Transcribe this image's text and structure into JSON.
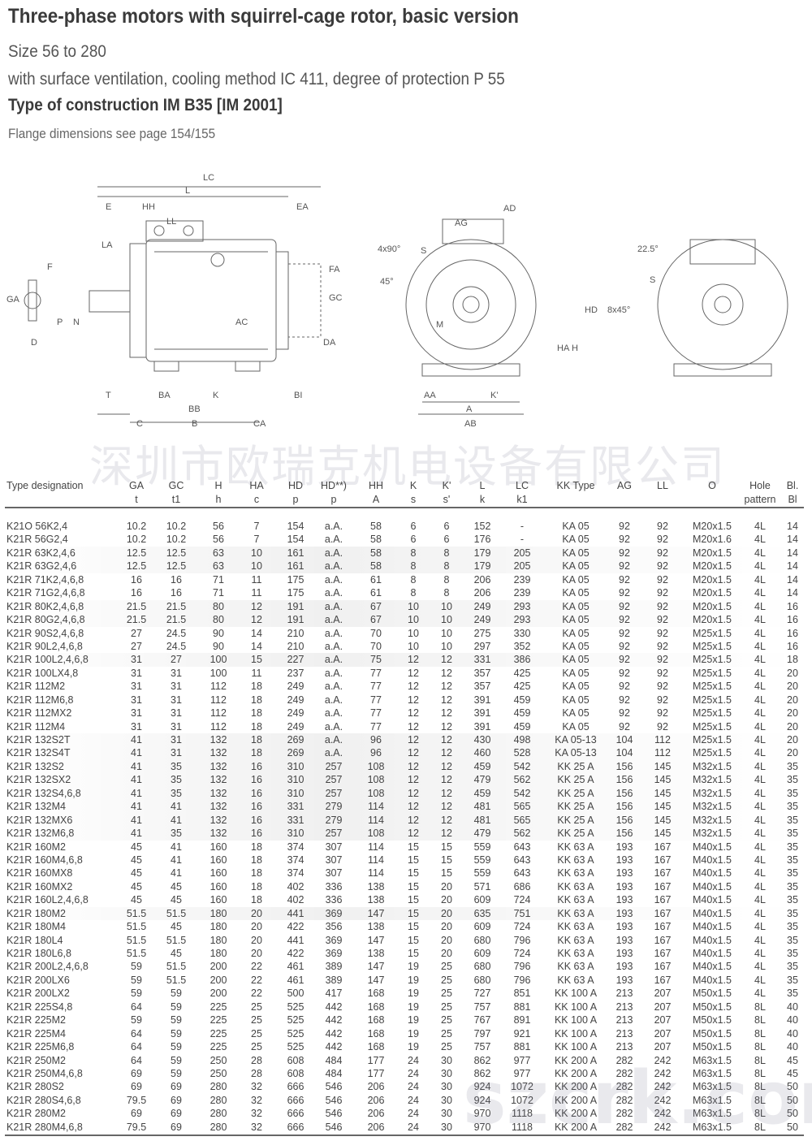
{
  "header": {
    "title": "Three-phase motors with squirrel-cage rotor, basic version",
    "size": "Size 56 to 280",
    "ventilation": "with surface ventilation, cooling method IC 411, degree of protection P 55",
    "construction": "Type of construction IM B35 [IM 2001]",
    "flange_note": "Flange dimensions see page 154/155"
  },
  "drawing": {
    "side_labels": [
      "LC",
      "L",
      "E",
      "HH",
      "EA",
      "LL",
      "LA",
      "F",
      "GA",
      "D",
      "P",
      "N",
      "AC",
      "FA",
      "GC",
      "DA",
      "T",
      "BA",
      "BB",
      "K",
      "C",
      "B",
      "CA",
      "BI"
    ],
    "front_labels": [
      "AD",
      "AG",
      "4x90°",
      "45°",
      "S",
      "M",
      "HD",
      "HA",
      "H",
      "AA",
      "K'",
      "A",
      "AB"
    ],
    "rear_labels": [
      "22.5°",
      "8x45°",
      "S"
    ]
  },
  "watermark": {
    "company": "深圳市欧瑞克机电设备有限公司",
    "site": "szcrk.com"
  },
  "table": {
    "columns": [
      {
        "top": "Type designation",
        "bottom": ""
      },
      {
        "top": "GA",
        "bottom": "t"
      },
      {
        "top": "GC",
        "bottom": "t1"
      },
      {
        "top": "H",
        "bottom": "h"
      },
      {
        "top": "HA",
        "bottom": "c"
      },
      {
        "top": "HD",
        "bottom": "p"
      },
      {
        "top": "HD**)",
        "bottom": "p"
      },
      {
        "top": "HH",
        "bottom": "A"
      },
      {
        "top": "K",
        "bottom": "s"
      },
      {
        "top": "K'",
        "bottom": "s'"
      },
      {
        "top": "L",
        "bottom": "k"
      },
      {
        "top": "LC",
        "bottom": "k1"
      },
      {
        "top": "KK Type",
        "bottom": ""
      },
      {
        "top": "AG",
        "bottom": ""
      },
      {
        "top": "LL",
        "bottom": ""
      },
      {
        "top": "O",
        "bottom": ""
      },
      {
        "top": "Hole",
        "bottom": "pattern"
      },
      {
        "top": "Bl.",
        "bottom": "Bl"
      }
    ],
    "rows": [
      [
        "K21O 56K2,4",
        "10.2",
        "10.2",
        "56",
        "7",
        "154",
        "a.A.",
        "58",
        "6",
        "6",
        "152",
        "-",
        "KA 05",
        "92",
        "92",
        "M20x1.5",
        "4L",
        "14"
      ],
      [
        "K21R 56G2,4",
        "10.2",
        "10.2",
        "56",
        "7",
        "154",
        "a.A.",
        "58",
        "6",
        "6",
        "176",
        "-",
        "KA 05",
        "92",
        "92",
        "M20x1.6",
        "4L",
        "14"
      ],
      [
        "K21R 63K2,4,6",
        "12.5",
        "12.5",
        "63",
        "10",
        "161",
        "a.A.",
        "58",
        "8",
        "8",
        "179",
        "205",
        "KA 05",
        "92",
        "92",
        "M20x1.5",
        "4L",
        "14"
      ],
      [
        "K21R 63G2,4,6",
        "12.5",
        "12.5",
        "63",
        "10",
        "161",
        "a.A.",
        "58",
        "8",
        "8",
        "179",
        "205",
        "KA 05",
        "92",
        "92",
        "M20x1.5",
        "4L",
        "14"
      ],
      [
        "K21R 71K2,4,6,8",
        "16",
        "16",
        "71",
        "11",
        "175",
        "a.A.",
        "61",
        "8",
        "8",
        "206",
        "239",
        "KA 05",
        "92",
        "92",
        "M20x1.5",
        "4L",
        "14"
      ],
      [
        "K21R 71G2,4,6,8",
        "16",
        "16",
        "71",
        "11",
        "175",
        "a.A.",
        "61",
        "8",
        "8",
        "206",
        "239",
        "KA 05",
        "92",
        "92",
        "M20x1.5",
        "4L",
        "14"
      ],
      [
        "K21R 80K2,4,6,8",
        "21.5",
        "21.5",
        "80",
        "12",
        "191",
        "a.A.",
        "67",
        "10",
        "10",
        "249",
        "293",
        "KA 05",
        "92",
        "92",
        "M20x1.5",
        "4L",
        "16"
      ],
      [
        "K21R 80G2,4,6,8",
        "21.5",
        "21.5",
        "80",
        "12",
        "191",
        "a.A.",
        "67",
        "10",
        "10",
        "249",
        "293",
        "KA 05",
        "92",
        "92",
        "M20x1.5",
        "4L",
        "16"
      ],
      [
        "K21R 90S2,4,6,8",
        "27",
        "24.5",
        "90",
        "14",
        "210",
        "a.A.",
        "70",
        "10",
        "10",
        "275",
        "330",
        "KA 05",
        "92",
        "92",
        "M25x1.5",
        "4L",
        "16"
      ],
      [
        "K21R 90L2,4,6,8",
        "27",
        "24.5",
        "90",
        "14",
        "210",
        "a.A.",
        "70",
        "10",
        "10",
        "297",
        "352",
        "KA 05",
        "92",
        "92",
        "M25x1.5",
        "4L",
        "16"
      ],
      [
        "K21R 100L2,4,6,8",
        "31",
        "27",
        "100",
        "15",
        "227",
        "a.A.",
        "75",
        "12",
        "12",
        "331",
        "386",
        "KA 05",
        "92",
        "92",
        "M25x1.5",
        "4L",
        "18"
      ],
      [
        "K21R 100LX4,8",
        "31",
        "31",
        "100",
        "11",
        "237",
        "a.A.",
        "77",
        "12",
        "12",
        "357",
        "425",
        "KA 05",
        "92",
        "92",
        "M25x1.5",
        "4L",
        "20"
      ],
      [
        "K21R 112M2",
        "31",
        "31",
        "112",
        "18",
        "249",
        "a.A.",
        "77",
        "12",
        "12",
        "357",
        "425",
        "KA 05",
        "92",
        "92",
        "M25x1.5",
        "4L",
        "20"
      ],
      [
        "K21R 112M6,8",
        "31",
        "31",
        "112",
        "18",
        "249",
        "a.A.",
        "77",
        "12",
        "12",
        "391",
        "459",
        "KA 05",
        "92",
        "92",
        "M25x1.5",
        "4L",
        "20"
      ],
      [
        "K21R 112MX2",
        "31",
        "31",
        "112",
        "18",
        "249",
        "a.A.",
        "77",
        "12",
        "12",
        "391",
        "459",
        "KA 05",
        "92",
        "92",
        "M25x1.5",
        "4L",
        "20"
      ],
      [
        "K21R 112M4",
        "31",
        "31",
        "112",
        "18",
        "249",
        "a.A.",
        "77",
        "12",
        "12",
        "391",
        "459",
        "KA 05",
        "92",
        "92",
        "M25x1.5",
        "4L",
        "20"
      ],
      [
        "K21R 132S2T",
        "41",
        "31",
        "132",
        "18",
        "269",
        "a.A.",
        "96",
        "12",
        "12",
        "430",
        "498",
        "KA 05-13",
        "104",
        "112",
        "M25x1.5",
        "4L",
        "20"
      ],
      [
        "K21R 132S4T",
        "41",
        "31",
        "132",
        "18",
        "269",
        "a.A.",
        "96",
        "12",
        "12",
        "460",
        "528",
        "KA 05-13",
        "104",
        "112",
        "M25x1.5",
        "4L",
        "20"
      ],
      [
        "K21R 132S2",
        "41",
        "35",
        "132",
        "16",
        "310",
        "257",
        "108",
        "12",
        "12",
        "459",
        "542",
        "KK 25 A",
        "156",
        "145",
        "M32x1.5",
        "4L",
        "35"
      ],
      [
        "K21R 132SX2",
        "41",
        "35",
        "132",
        "16",
        "310",
        "257",
        "108",
        "12",
        "12",
        "479",
        "562",
        "KK 25 A",
        "156",
        "145",
        "M32x1.5",
        "4L",
        "35"
      ],
      [
        "K21R 132S4,6,8",
        "41",
        "35",
        "132",
        "16",
        "310",
        "257",
        "108",
        "12",
        "12",
        "459",
        "542",
        "KK 25 A",
        "156",
        "145",
        "M32x1.5",
        "4L",
        "35"
      ],
      [
        "K21R 132M4",
        "41",
        "41",
        "132",
        "16",
        "331",
        "279",
        "114",
        "12",
        "12",
        "481",
        "565",
        "KK 25 A",
        "156",
        "145",
        "M32x1.5",
        "4L",
        "35"
      ],
      [
        "K21R 132MX6",
        "41",
        "41",
        "132",
        "16",
        "331",
        "279",
        "114",
        "12",
        "12",
        "481",
        "565",
        "KK 25 A",
        "156",
        "145",
        "M32x1.5",
        "4L",
        "35"
      ],
      [
        "K21R 132M6,8",
        "41",
        "35",
        "132",
        "16",
        "310",
        "257",
        "108",
        "12",
        "12",
        "479",
        "562",
        "KK 25 A",
        "156",
        "145",
        "M32x1.5",
        "4L",
        "35"
      ],
      [
        "K21R 160M2",
        "45",
        "41",
        "160",
        "18",
        "374",
        "307",
        "114",
        "15",
        "15",
        "559",
        "643",
        "KK 63 A",
        "193",
        "167",
        "M40x1.5",
        "4L",
        "35"
      ],
      [
        "K21R 160M4,6,8",
        "45",
        "41",
        "160",
        "18",
        "374",
        "307",
        "114",
        "15",
        "15",
        "559",
        "643",
        "KK 63 A",
        "193",
        "167",
        "M40x1.5",
        "4L",
        "35"
      ],
      [
        "K21R 160MX8",
        "45",
        "41",
        "160",
        "18",
        "374",
        "307",
        "114",
        "15",
        "15",
        "559",
        "643",
        "KK 63 A",
        "193",
        "167",
        "M40x1.5",
        "4L",
        "35"
      ],
      [
        "K21R 160MX2",
        "45",
        "45",
        "160",
        "18",
        "402",
        "336",
        "138",
        "15",
        "20",
        "571",
        "686",
        "KK 63 A",
        "193",
        "167",
        "M40x1.5",
        "4L",
        "35"
      ],
      [
        "K21R 160L2,4,6,8",
        "45",
        "45",
        "160",
        "18",
        "402",
        "336",
        "138",
        "15",
        "20",
        "609",
        "724",
        "KK 63 A",
        "193",
        "167",
        "M40x1.5",
        "4L",
        "35"
      ],
      [
        "K21R 180M2",
        "51.5",
        "51.5",
        "180",
        "20",
        "441",
        "369",
        "147",
        "15",
        "20",
        "635",
        "751",
        "KK 63 A",
        "193",
        "167",
        "M40x1.5",
        "4L",
        "35"
      ],
      [
        "K21R 180M4",
        "51.5",
        "45",
        "180",
        "20",
        "422",
        "356",
        "138",
        "15",
        "20",
        "609",
        "724",
        "KK 63 A",
        "193",
        "167",
        "M40x1.5",
        "4L",
        "35"
      ],
      [
        "K21R 180L4",
        "51.5",
        "51.5",
        "180",
        "20",
        "441",
        "369",
        "147",
        "15",
        "20",
        "680",
        "796",
        "KK 63 A",
        "193",
        "167",
        "M40x1.5",
        "4L",
        "35"
      ],
      [
        "K21R 180L6,8",
        "51.5",
        "45",
        "180",
        "20",
        "422",
        "369",
        "138",
        "15",
        "20",
        "609",
        "724",
        "KK 63 A",
        "193",
        "167",
        "M40x1.5",
        "4L",
        "35"
      ],
      [
        "K21R 200L2,4,6,8",
        "59",
        "51.5",
        "200",
        "22",
        "461",
        "389",
        "147",
        "19",
        "25",
        "680",
        "796",
        "KK 63 A",
        "193",
        "167",
        "M40x1.5",
        "4L",
        "35"
      ],
      [
        "K21R 200LX6",
        "59",
        "51.5",
        "200",
        "22",
        "461",
        "389",
        "147",
        "19",
        "25",
        "680",
        "796",
        "KK 63 A",
        "193",
        "167",
        "M40x1.5",
        "4L",
        "35"
      ],
      [
        "K21R 200LX2",
        "59",
        "59",
        "200",
        "22",
        "500",
        "417",
        "168",
        "19",
        "25",
        "727",
        "851",
        "KK 100 A",
        "213",
        "207",
        "M50x1.5",
        "4L",
        "35"
      ],
      [
        "K21R 225S4,8",
        "64",
        "59",
        "225",
        "25",
        "525",
        "442",
        "168",
        "19",
        "25",
        "757",
        "881",
        "KK 100 A",
        "213",
        "207",
        "M50x1.5",
        "8L",
        "40"
      ],
      [
        "K21R 225M2",
        "59",
        "59",
        "225",
        "25",
        "525",
        "442",
        "168",
        "19",
        "25",
        "767",
        "891",
        "KK 100 A",
        "213",
        "207",
        "M50x1.5",
        "8L",
        "40"
      ],
      [
        "K21R 225M4",
        "64",
        "59",
        "225",
        "25",
        "525",
        "442",
        "168",
        "19",
        "25",
        "797",
        "921",
        "KK 100 A",
        "213",
        "207",
        "M50x1.5",
        "8L",
        "40"
      ],
      [
        "K21R 225M6,8",
        "64",
        "59",
        "225",
        "25",
        "525",
        "442",
        "168",
        "19",
        "25",
        "757",
        "881",
        "KK 100 A",
        "213",
        "207",
        "M50x1.5",
        "8L",
        "40"
      ],
      [
        "K21R 250M2",
        "64",
        "59",
        "250",
        "28",
        "608",
        "484",
        "177",
        "24",
        "30",
        "862",
        "977",
        "KK 200 A",
        "282",
        "242",
        "M63x1.5",
        "8L",
        "45"
      ],
      [
        "K21R 250M4,6,8",
        "69",
        "59",
        "250",
        "28",
        "608",
        "484",
        "177",
        "24",
        "30",
        "862",
        "977",
        "KK 200 A",
        "282",
        "242",
        "M63x1.5",
        "8L",
        "45"
      ],
      [
        "K21R 280S2",
        "69",
        "69",
        "280",
        "32",
        "666",
        "546",
        "206",
        "24",
        "30",
        "924",
        "1072",
        "KK 200 A",
        "282",
        "242",
        "M63x1.5",
        "8L",
        "50"
      ],
      [
        "K21R 280S4,6,8",
        "79.5",
        "69",
        "280",
        "32",
        "666",
        "546",
        "206",
        "24",
        "30",
        "924",
        "1072",
        "KK 200 A",
        "282",
        "242",
        "M63x1.5",
        "8L",
        "50"
      ],
      [
        "K21R 280M2",
        "69",
        "69",
        "280",
        "32",
        "666",
        "546",
        "206",
        "24",
        "30",
        "970",
        "1118",
        "KK 200 A",
        "282",
        "242",
        "M63x1.5",
        "8L",
        "50"
      ],
      [
        "K21R 280M4,6,8",
        "79.5",
        "69",
        "280",
        "32",
        "666",
        "546",
        "206",
        "24",
        "30",
        "970",
        "1118",
        "KK 200 A",
        "282",
        "242",
        "M63x1.5",
        "8L",
        "50"
      ]
    ]
  }
}
